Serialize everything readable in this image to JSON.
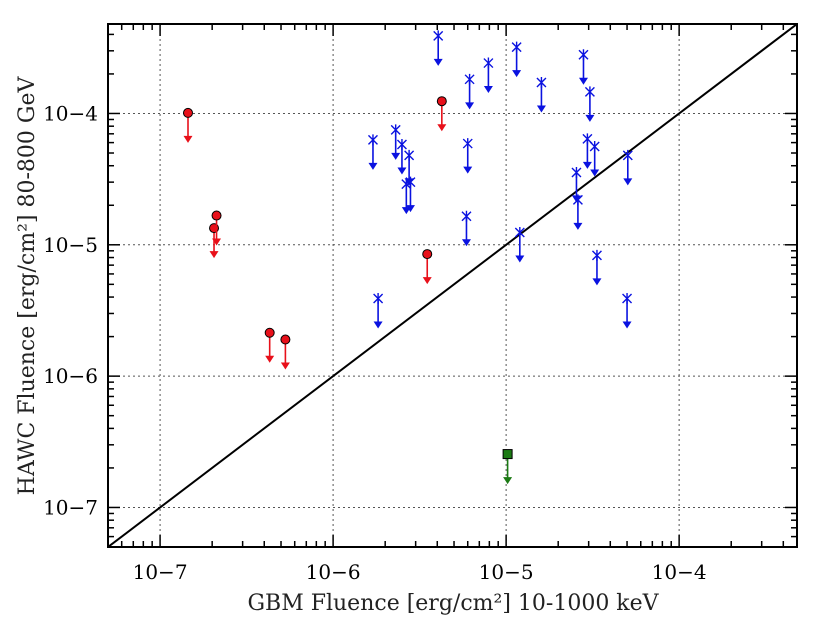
{
  "chart_data": {
    "type": "scatter",
    "title": "",
    "xlabel": "GBM Fluence [erg/cm²] 10-1000 keV",
    "ylabel": "HAWC Fluence [erg/cm²] 80-800 GeV",
    "xscale": "log",
    "yscale": "log",
    "xlim": [
      5e-08,
      0.00048
    ],
    "ylim": [
      5e-08,
      0.00048
    ],
    "grid": true,
    "legend": "none",
    "x_ticks": [
      {
        "value": 1e-07,
        "label": "10−7"
      },
      {
        "value": 1e-06,
        "label": "10−6"
      },
      {
        "value": 1e-05,
        "label": "10−5"
      },
      {
        "value": 0.0001,
        "label": "10−4"
      }
    ],
    "y_ticks": [
      {
        "value": 1e-07,
        "label": "10−7"
      },
      {
        "value": 1e-06,
        "label": "10−6"
      },
      {
        "value": 1e-05,
        "label": "10−5"
      },
      {
        "value": 0.0001,
        "label": "10−4"
      }
    ],
    "reference_line": {
      "name": "equality",
      "x": [
        5e-08,
        0.00048
      ],
      "y": [
        5e-08,
        0.00048
      ],
      "color": "#000000"
    },
    "series": [
      {
        "name": "red",
        "marker": "circle",
        "color": "#e8101a",
        "upper_limits": true,
        "x": [
          1.45e-07,
          2.05e-07,
          2.12e-07,
          4.3e-07,
          5.3e-07,
          3.5e-06,
          4.25e-06
        ],
        "y": [
          0.000101,
          1.34e-05,
          1.67e-05,
          2.14e-06,
          1.9e-06,
          8.5e-06,
          0.000124
        ]
      },
      {
        "name": "blue",
        "marker": "x",
        "color": "#0a12e0",
        "upper_limits": true,
        "x": [
          1.7e-06,
          1.82e-06,
          2.3e-06,
          2.5e-06,
          2.65e-06,
          2.75e-06,
          2.8e-06,
          4.05e-06,
          5.9e-06,
          6e-06,
          6.15e-06,
          7.9e-06,
          1.15e-05,
          1.2e-05,
          1.6e-05,
          2.55e-05,
          2.6e-05,
          2.8e-05,
          2.95e-05,
          3.05e-05,
          3.25e-05,
          3.35e-05,
          5e-05,
          5.05e-05
        ],
        "y": [
          6.3e-05,
          3.9e-06,
          7.5e-05,
          5.8e-05,
          2.9e-05,
          4.8e-05,
          3e-05,
          0.00039,
          1.65e-05,
          5.9e-05,
          0.000182,
          0.000242,
          0.00032,
          1.24e-05,
          0.000172,
          3.55e-05,
          2.2e-05,
          0.00028,
          6.4e-05,
          0.000146,
          5.6e-05,
          8.3e-06,
          3.9e-06,
          4.8e-05
        ]
      },
      {
        "name": "green",
        "marker": "square",
        "color": "#1b7a13",
        "upper_limits": true,
        "x": [
          1.02e-05
        ],
        "y": [
          2.55e-07
        ]
      }
    ]
  }
}
